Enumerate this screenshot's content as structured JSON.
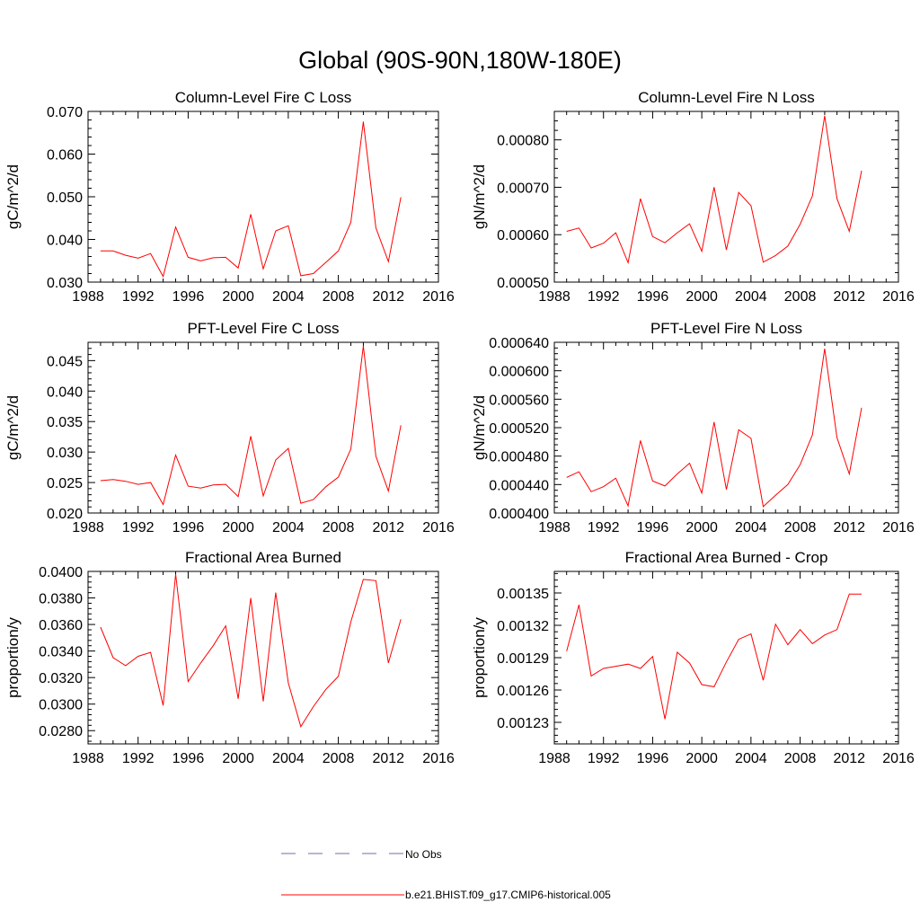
{
  "figure": {
    "title": "Global (90S-90N,180W-180E)"
  },
  "legend": {
    "placement": "bottom-center",
    "items": [
      {
        "label": "No Obs",
        "color": "#6f6fa8",
        "style": "dashed"
      },
      {
        "label": "b.e21.BHIST.f09_g17.CMIP6-historical.005",
        "color": "#ff0000",
        "style": "solid"
      }
    ]
  },
  "chart_data": [
    {
      "type": "line",
      "title": "Column-Level Fire C Loss",
      "ylabel": "gC/m^2/d",
      "xlim": [
        1988,
        2016
      ],
      "ylim": [
        0.03,
        0.07
      ],
      "xticks": [
        1988,
        1992,
        1996,
        2000,
        2004,
        2008,
        2012,
        2016
      ],
      "yticks": [
        0.03,
        0.04,
        0.05,
        0.06,
        0.07
      ],
      "yticklabels": [
        "0.030",
        "0.040",
        "0.050",
        "0.060",
        "0.070"
      ],
      "x": [
        1989,
        1990,
        1991,
        1992,
        1993,
        1994,
        1995,
        1996,
        1997,
        1998,
        1999,
        2000,
        2001,
        2002,
        2003,
        2004,
        2005,
        2006,
        2007,
        2008,
        2009,
        2010,
        2011,
        2012,
        2013
      ],
      "series": [
        {
          "color": "#ff0000",
          "values": [
            0.0373,
            0.0373,
            0.0363,
            0.0356,
            0.0367,
            0.0313,
            0.0429,
            0.0358,
            0.035,
            0.0357,
            0.0358,
            0.0333,
            0.0459,
            0.0331,
            0.042,
            0.0432,
            0.0315,
            0.032,
            0.0346,
            0.0373,
            0.044,
            0.0676,
            0.0427,
            0.0348,
            0.0499
          ]
        }
      ]
    },
    {
      "type": "line",
      "title": "Column-Level Fire N Loss",
      "ylabel": "gN/m^2/d",
      "xlim": [
        1988,
        2016
      ],
      "ylim": [
        0.0005,
        0.00086
      ],
      "xticks": [
        1988,
        1992,
        1996,
        2000,
        2004,
        2008,
        2012,
        2016
      ],
      "yticks": [
        0.0005,
        0.0006,
        0.0007,
        0.0008
      ],
      "yticklabels": [
        "0.00050",
        "0.00060",
        "0.00070",
        "0.00080"
      ],
      "x": [
        1989,
        1990,
        1991,
        1992,
        1993,
        1994,
        1995,
        1996,
        1997,
        1998,
        1999,
        2000,
        2001,
        2002,
        2003,
        2004,
        2005,
        2006,
        2007,
        2008,
        2009,
        2010,
        2011,
        2012,
        2013
      ],
      "series": [
        {
          "color": "#ff0000",
          "values": [
            0.000607,
            0.000614,
            0.000572,
            0.000582,
            0.000604,
            0.000541,
            0.000676,
            0.000596,
            0.000583,
            0.000604,
            0.000623,
            0.000565,
            0.0007,
            0.000568,
            0.000689,
            0.000661,
            0.000542,
            0.000556,
            0.000576,
            0.000622,
            0.000682,
            0.000851,
            0.000676,
            0.000607,
            0.000735
          ]
        }
      ]
    },
    {
      "type": "line",
      "title": "PFT-Level Fire C Loss",
      "ylabel": "gC/m^2/d",
      "xlim": [
        1988,
        2016
      ],
      "ylim": [
        0.02,
        0.048
      ],
      "xticks": [
        1988,
        1992,
        1996,
        2000,
        2004,
        2008,
        2012,
        2016
      ],
      "yticks": [
        0.02,
        0.025,
        0.03,
        0.035,
        0.04,
        0.045
      ],
      "yticklabels": [
        "0.020",
        "0.025",
        "0.030",
        "0.035",
        "0.040",
        "0.045"
      ],
      "x": [
        1989,
        1990,
        1991,
        1992,
        1993,
        1994,
        1995,
        1996,
        1997,
        1998,
        1999,
        2000,
        2001,
        2002,
        2003,
        2004,
        2005,
        2006,
        2007,
        2008,
        2009,
        2010,
        2011,
        2012,
        2013
      ],
      "series": [
        {
          "color": "#ff0000",
          "values": [
            0.0253,
            0.0255,
            0.0252,
            0.0247,
            0.025,
            0.0214,
            0.0295,
            0.0244,
            0.0241,
            0.0246,
            0.0247,
            0.0227,
            0.0326,
            0.0228,
            0.0287,
            0.0306,
            0.0216,
            0.0222,
            0.0243,
            0.0259,
            0.0305,
            0.0474,
            0.0293,
            0.0236,
            0.0344
          ]
        }
      ]
    },
    {
      "type": "line",
      "title": "PFT-Level Fire N Loss",
      "ylabel": "gN/m^2/d",
      "xlim": [
        1988,
        2016
      ],
      "ylim": [
        0.0004,
        0.00064
      ],
      "xticks": [
        1988,
        1992,
        1996,
        2000,
        2004,
        2008,
        2012,
        2016
      ],
      "yticks": [
        0.0004,
        0.00044,
        0.00048,
        0.00052,
        0.00056,
        0.0006,
        0.00064
      ],
      "yticklabels": [
        "0.000400",
        "0.000440",
        "0.000480",
        "0.000520",
        "0.000560",
        "0.000600",
        "0.000640"
      ],
      "x": [
        1989,
        1990,
        1991,
        1992,
        1993,
        1994,
        1995,
        1996,
        1997,
        1998,
        1999,
        2000,
        2001,
        2002,
        2003,
        2004,
        2005,
        2006,
        2007,
        2008,
        2009,
        2010,
        2011,
        2012,
        2013
      ],
      "series": [
        {
          "color": "#ff0000",
          "values": [
            0.00045,
            0.000458,
            0.00043,
            0.000437,
            0.000449,
            0.00041,
            0.000502,
            0.000445,
            0.000438,
            0.000455,
            0.00047,
            0.000428,
            0.000528,
            0.000433,
            0.000517,
            0.000505,
            0.000409,
            0.000425,
            0.00044,
            0.000468,
            0.00051,
            0.000631,
            0.000506,
            0.000455,
            0.000548
          ]
        }
      ]
    },
    {
      "type": "line",
      "title": "Fractional Area Burned",
      "ylabel": "proportion/y",
      "xlim": [
        1988,
        2016
      ],
      "ylim": [
        0.027,
        0.04
      ],
      "xticks": [
        1988,
        1992,
        1996,
        2000,
        2004,
        2008,
        2012,
        2016
      ],
      "yticks": [
        0.028,
        0.03,
        0.032,
        0.034,
        0.036,
        0.038,
        0.04
      ],
      "yticklabels": [
        "0.0280",
        "0.0300",
        "0.0320",
        "0.0340",
        "0.0360",
        "0.0380",
        "0.0400"
      ],
      "x": [
        1989,
        1990,
        1991,
        1992,
        1993,
        1994,
        1995,
        1996,
        1997,
        1998,
        1999,
        2000,
        2001,
        2002,
        2003,
        2004,
        2005,
        2006,
        2007,
        2008,
        2009,
        2010,
        2011,
        2012,
        2013
      ],
      "series": [
        {
          "color": "#ff0000",
          "values": [
            0.0358,
            0.0335,
            0.0329,
            0.0336,
            0.0339,
            0.0299,
            0.0398,
            0.0317,
            0.0331,
            0.0344,
            0.0359,
            0.0304,
            0.038,
            0.0302,
            0.0384,
            0.0316,
            0.0283,
            0.0298,
            0.0311,
            0.0321,
            0.0362,
            0.0394,
            0.0393,
            0.0331,
            0.0364
          ]
        }
      ]
    },
    {
      "type": "line",
      "title": "Fractional Area Burned - Crop",
      "ylabel": "proportion/y",
      "xlim": [
        1988,
        2016
      ],
      "ylim": [
        0.00121,
        0.00137
      ],
      "xticks": [
        1988,
        1992,
        1996,
        2000,
        2004,
        2008,
        2012,
        2016
      ],
      "yticks": [
        0.00123,
        0.00126,
        0.00129,
        0.00132,
        0.00135
      ],
      "yticklabels": [
        "0.00123",
        "0.00126",
        "0.00129",
        "0.00132",
        "0.00135"
      ],
      "x": [
        1989,
        1990,
        1991,
        1992,
        1993,
        1994,
        1995,
        1996,
        1997,
        1998,
        1999,
        2000,
        2001,
        2002,
        2003,
        2004,
        2005,
        2006,
        2007,
        2008,
        2009,
        2010,
        2011,
        2012,
        2013
      ],
      "series": [
        {
          "color": "#ff0000",
          "values": [
            0.001296,
            0.001339,
            0.001273,
            0.00128,
            0.001282,
            0.001284,
            0.00128,
            0.001291,
            0.001233,
            0.001295,
            0.001285,
            0.001265,
            0.001263,
            0.001286,
            0.001307,
            0.001312,
            0.001269,
            0.001321,
            0.001302,
            0.001316,
            0.001303,
            0.001311,
            0.001316,
            0.001349,
            0.001349
          ]
        }
      ]
    }
  ]
}
